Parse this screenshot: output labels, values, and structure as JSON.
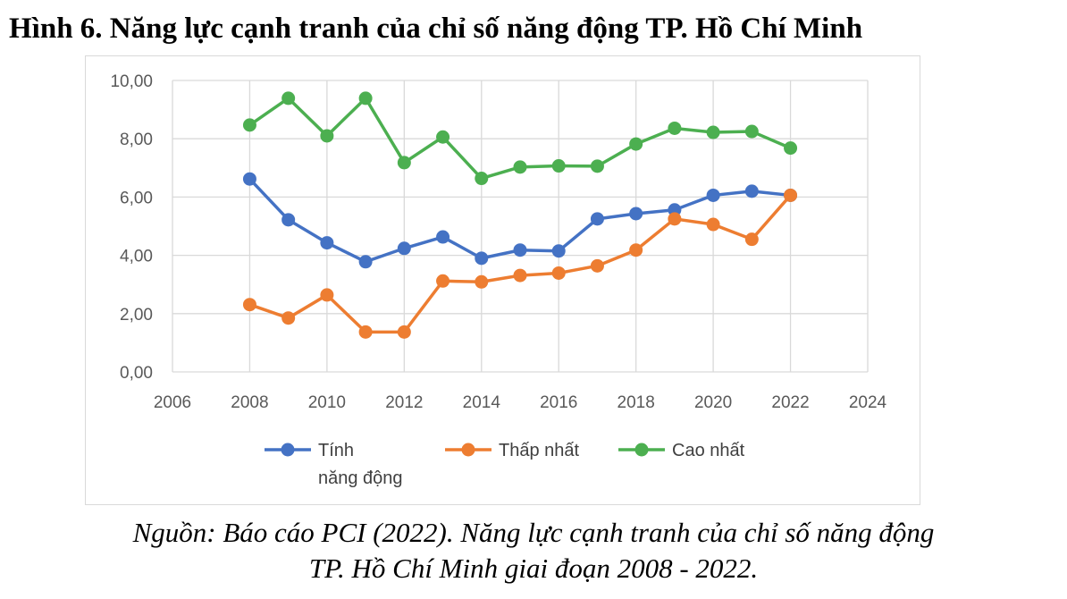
{
  "figure": {
    "title": "Hình 6. Năng lực cạnh tranh của chỉ số năng động TP. Hồ Chí Minh",
    "source_line1": "Nguồn: Báo cáo PCI (2022). Năng lực cạnh tranh của chỉ số năng động",
    "source_line2": "TP. Hồ Chí Minh giai đoạn 2008 - 2022."
  },
  "chart_data": {
    "type": "line",
    "title": "",
    "xlabel": "",
    "ylabel": "",
    "xlim": [
      2006,
      2024
    ],
    "ylim": [
      0,
      10
    ],
    "x_ticks": [
      2006,
      2008,
      2010,
      2012,
      2014,
      2016,
      2018,
      2020,
      2022,
      2024
    ],
    "y_ticks": [
      "0,00",
      "2,00",
      "4,00",
      "6,00",
      "8,00",
      "10,00"
    ],
    "y_tick_values": [
      0,
      2,
      4,
      6,
      8,
      10
    ],
    "grid": true,
    "legend_position": "bottom",
    "x": [
      2008,
      2009,
      2010,
      2011,
      2012,
      2013,
      2014,
      2015,
      2016,
      2017,
      2018,
      2019,
      2020,
      2021,
      2022
    ],
    "series": [
      {
        "name": "Tính năng động",
        "legend_lines": [
          "Tính",
          "năng động"
        ],
        "color": "#4472c4",
        "values": [
          6.62,
          5.22,
          4.43,
          3.78,
          4.24,
          4.63,
          3.9,
          4.18,
          4.15,
          5.25,
          5.43,
          5.56,
          6.06,
          6.2,
          6.06
        ]
      },
      {
        "name": "Thấp nhất",
        "legend_lines": [
          "Thấp nhất"
        ],
        "color": "#ed7d31",
        "values": [
          2.31,
          1.85,
          2.64,
          1.37,
          1.37,
          3.12,
          3.09,
          3.31,
          3.39,
          3.64,
          4.18,
          5.25,
          5.06,
          4.55,
          6.06
        ]
      },
      {
        "name": "Cao nhất",
        "legend_lines": [
          "Cao nhất"
        ],
        "color": "#4caf50",
        "values": [
          8.47,
          9.39,
          8.1,
          9.39,
          7.18,
          8.06,
          6.64,
          7.03,
          7.07,
          7.06,
          7.82,
          8.36,
          8.22,
          8.25,
          7.68
        ]
      }
    ]
  }
}
